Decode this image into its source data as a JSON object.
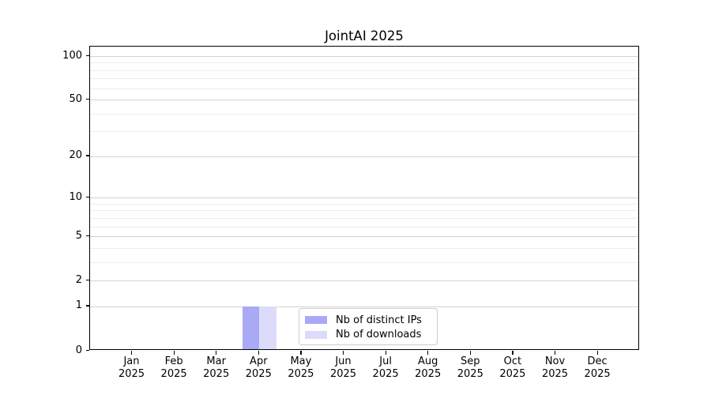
{
  "chart_data": {
    "type": "bar",
    "title": "JointAI 2025",
    "categories": [
      "Jan 2025",
      "Feb 2025",
      "Mar 2025",
      "Apr 2025",
      "May 2025",
      "Jun 2025",
      "Jul 2025",
      "Aug 2025",
      "Sep 2025",
      "Oct 2025",
      "Nov 2025",
      "Dec 2025"
    ],
    "series": [
      {
        "name": "Nb of distinct IPs",
        "color": "#a9a9f6",
        "values": [
          0,
          0,
          0,
          1,
          0,
          0,
          0,
          0,
          0,
          0,
          0,
          0
        ]
      },
      {
        "name": "Nb of downloads",
        "color": "#dcdcfa",
        "values": [
          0,
          0,
          0,
          1,
          0,
          0,
          0,
          0,
          0,
          0,
          0,
          0
        ]
      }
    ],
    "xlabel": "",
    "ylabel": "",
    "y_scale": "log1p",
    "y_ticks": [
      0,
      1,
      2,
      5,
      10,
      20,
      50,
      100
    ],
    "y_minor_ticks": [
      3,
      4,
      6,
      7,
      8,
      9,
      30,
      40,
      60,
      70,
      80,
      90
    ],
    "ylim": [
      0,
      117
    ],
    "grid": true,
    "legend_position": "lower center",
    "colors": {
      "spine": "#000000",
      "grid_major": "#d2d2d2",
      "grid_minor": "#ededed",
      "background": "#ffffff"
    }
  }
}
